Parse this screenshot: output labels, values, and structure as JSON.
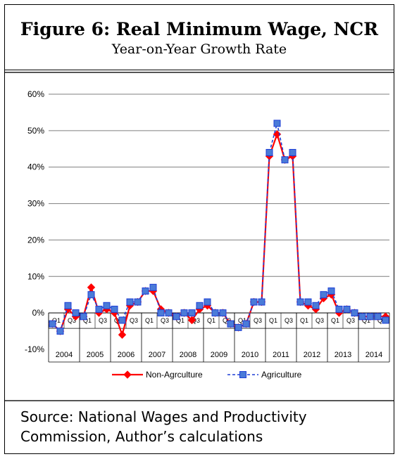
{
  "figure": {
    "title": "Figure 6: Real Minimum Wage, NCR",
    "subtitle": "Year-on-Year Growth Rate"
  },
  "source": {
    "text": "Source: National Wages and Productivity Commission, Author’s calculations"
  },
  "colors": {
    "non_agri": "#ff0000",
    "agri": "#1f3fd6",
    "agri_marker": "#4a7bd8",
    "grid": "#7f7f7f"
  },
  "chart_data": {
    "type": "line",
    "title": "",
    "xlabel": "",
    "ylabel": "",
    "ylim": [
      -10,
      60
    ],
    "yticks": [
      -10,
      0,
      10,
      20,
      30,
      40,
      50,
      60
    ],
    "ytick_labels": [
      "-10%",
      "0%",
      "10%",
      "20%",
      "30%",
      "40%",
      "50%",
      "60%"
    ],
    "grid": true,
    "legend_position": "bottom-center",
    "years": [
      "2004",
      "2005",
      "2006",
      "2007",
      "2008",
      "2009",
      "2010",
      "2011",
      "2012",
      "2013",
      "2014"
    ],
    "quarters": [
      "Q1",
      "Q3",
      "Q1",
      "Q3",
      "Q1",
      "Q3",
      "Q1",
      "Q3",
      "Q1",
      "Q3",
      "Q1",
      "Q3",
      "Q1",
      "Q3",
      "Q1",
      "Q3",
      "Q1",
      "Q3",
      "Q1",
      "Q3",
      "Q1",
      "Q3"
    ],
    "series": [
      {
        "name": "Non-Agrculture",
        "style": "solid",
        "marker": "diamond",
        "values": [
          -3,
          -5,
          1,
          -1,
          -1,
          7,
          0,
          1,
          0,
          -6,
          2,
          3,
          6,
          6,
          1,
          0,
          -1,
          0,
          -2,
          1,
          2,
          0,
          0,
          -3,
          -4,
          -3,
          3,
          3,
          43,
          49,
          42,
          43,
          3,
          2,
          1,
          4,
          5,
          0,
          1,
          0,
          -1,
          -1,
          -1,
          -1
        ]
      },
      {
        "name": "Agriculture",
        "style": "dashed",
        "marker": "square",
        "values": [
          -3,
          -5,
          2,
          0,
          -1,
          5,
          1,
          2,
          1,
          -2,
          3,
          3,
          6,
          7,
          0,
          0,
          -1,
          0,
          0,
          2,
          3,
          0,
          0,
          -3,
          -4,
          -3,
          3,
          3,
          44,
          52,
          42,
          44,
          3,
          3,
          2,
          5,
          6,
          1,
          1,
          0,
          -1,
          -1,
          -1,
          -2
        ]
      }
    ]
  }
}
